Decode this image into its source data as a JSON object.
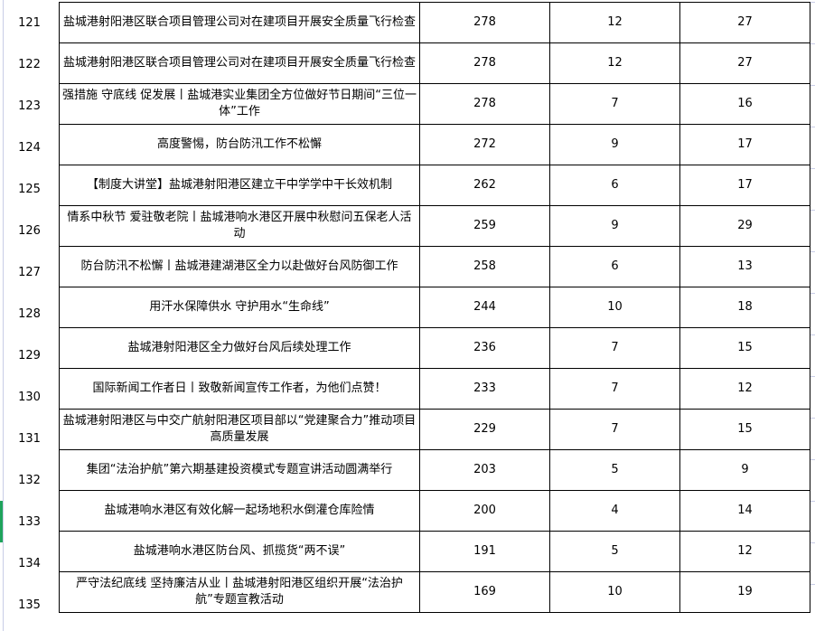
{
  "rows": [
    {
      "no": "121",
      "title": "盐城港射阳港区联合项目管理公司对在建项目开展安全质量飞行检查",
      "a": "278",
      "b": "12",
      "c": "27"
    },
    {
      "no": "122",
      "title": "盐城港射阳港区联合项目管理公司对在建项目开展安全质量飞行检查",
      "a": "278",
      "b": "12",
      "c": "27"
    },
    {
      "no": "123",
      "title": "强措施 守底线 促发展丨盐城港实业集团全方位做好节日期间“三位一体”工作",
      "a": "278",
      "b": "7",
      "c": "16"
    },
    {
      "no": "124",
      "title": "高度警惕，防台防汛工作不松懈",
      "a": "272",
      "b": "9",
      "c": "17"
    },
    {
      "no": "125",
      "title": "【制度大讲堂】盐城港射阳港区建立干中学学中干长效机制",
      "a": "262",
      "b": "6",
      "c": "17"
    },
    {
      "no": "126",
      "title": "情系中秋节 爱驻敬老院丨盐城港响水港区开展中秋慰问五保老人活动",
      "a": "259",
      "b": "9",
      "c": "29"
    },
    {
      "no": "127",
      "title": "防台防汛不松懈丨盐城港建湖港区全力以赴做好台风防御工作",
      "a": "258",
      "b": "6",
      "c": "13"
    },
    {
      "no": "128",
      "title": "用汗水保障供水 守护用水“生命线”",
      "a": "244",
      "b": "10",
      "c": "18"
    },
    {
      "no": "129",
      "title": "盐城港射阳港区全力做好台风后续处理工作",
      "a": "236",
      "b": "7",
      "c": "15"
    },
    {
      "no": "130",
      "title": "国际新闻工作者日丨致敬新闻宣传工作者，为他们点赞！",
      "a": "233",
      "b": "7",
      "c": "12"
    },
    {
      "no": "131",
      "title": "盐城港射阳港区与中交广航射阳港区项目部以“党建聚合力”推动项目高质量发展",
      "a": "229",
      "b": "7",
      "c": "15"
    },
    {
      "no": "132",
      "title": "集团“法治护航”第六期基建投资模式专题宣讲活动圆满举行",
      "a": "203",
      "b": "5",
      "c": "9"
    },
    {
      "no": "133",
      "title": "盐城港响水港区有效化解一起场地积水倒灌仓库险情",
      "a": "200",
      "b": "4",
      "c": "14"
    },
    {
      "no": "134",
      "title": "盐城港响水港区防台风、抓揽货“两不误”",
      "a": "191",
      "b": "5",
      "c": "12"
    },
    {
      "no": "135",
      "title": "严守法纪底线 坚持廉洁从业丨盐城港射阳港区组织开展“法治护航”专题宣教活动",
      "a": "169",
      "b": "10",
      "c": "19"
    }
  ],
  "selected_row": "133",
  "colors": {
    "grid": "#000000",
    "gutter": "#c9cde6",
    "selection": "#1fa35c"
  }
}
